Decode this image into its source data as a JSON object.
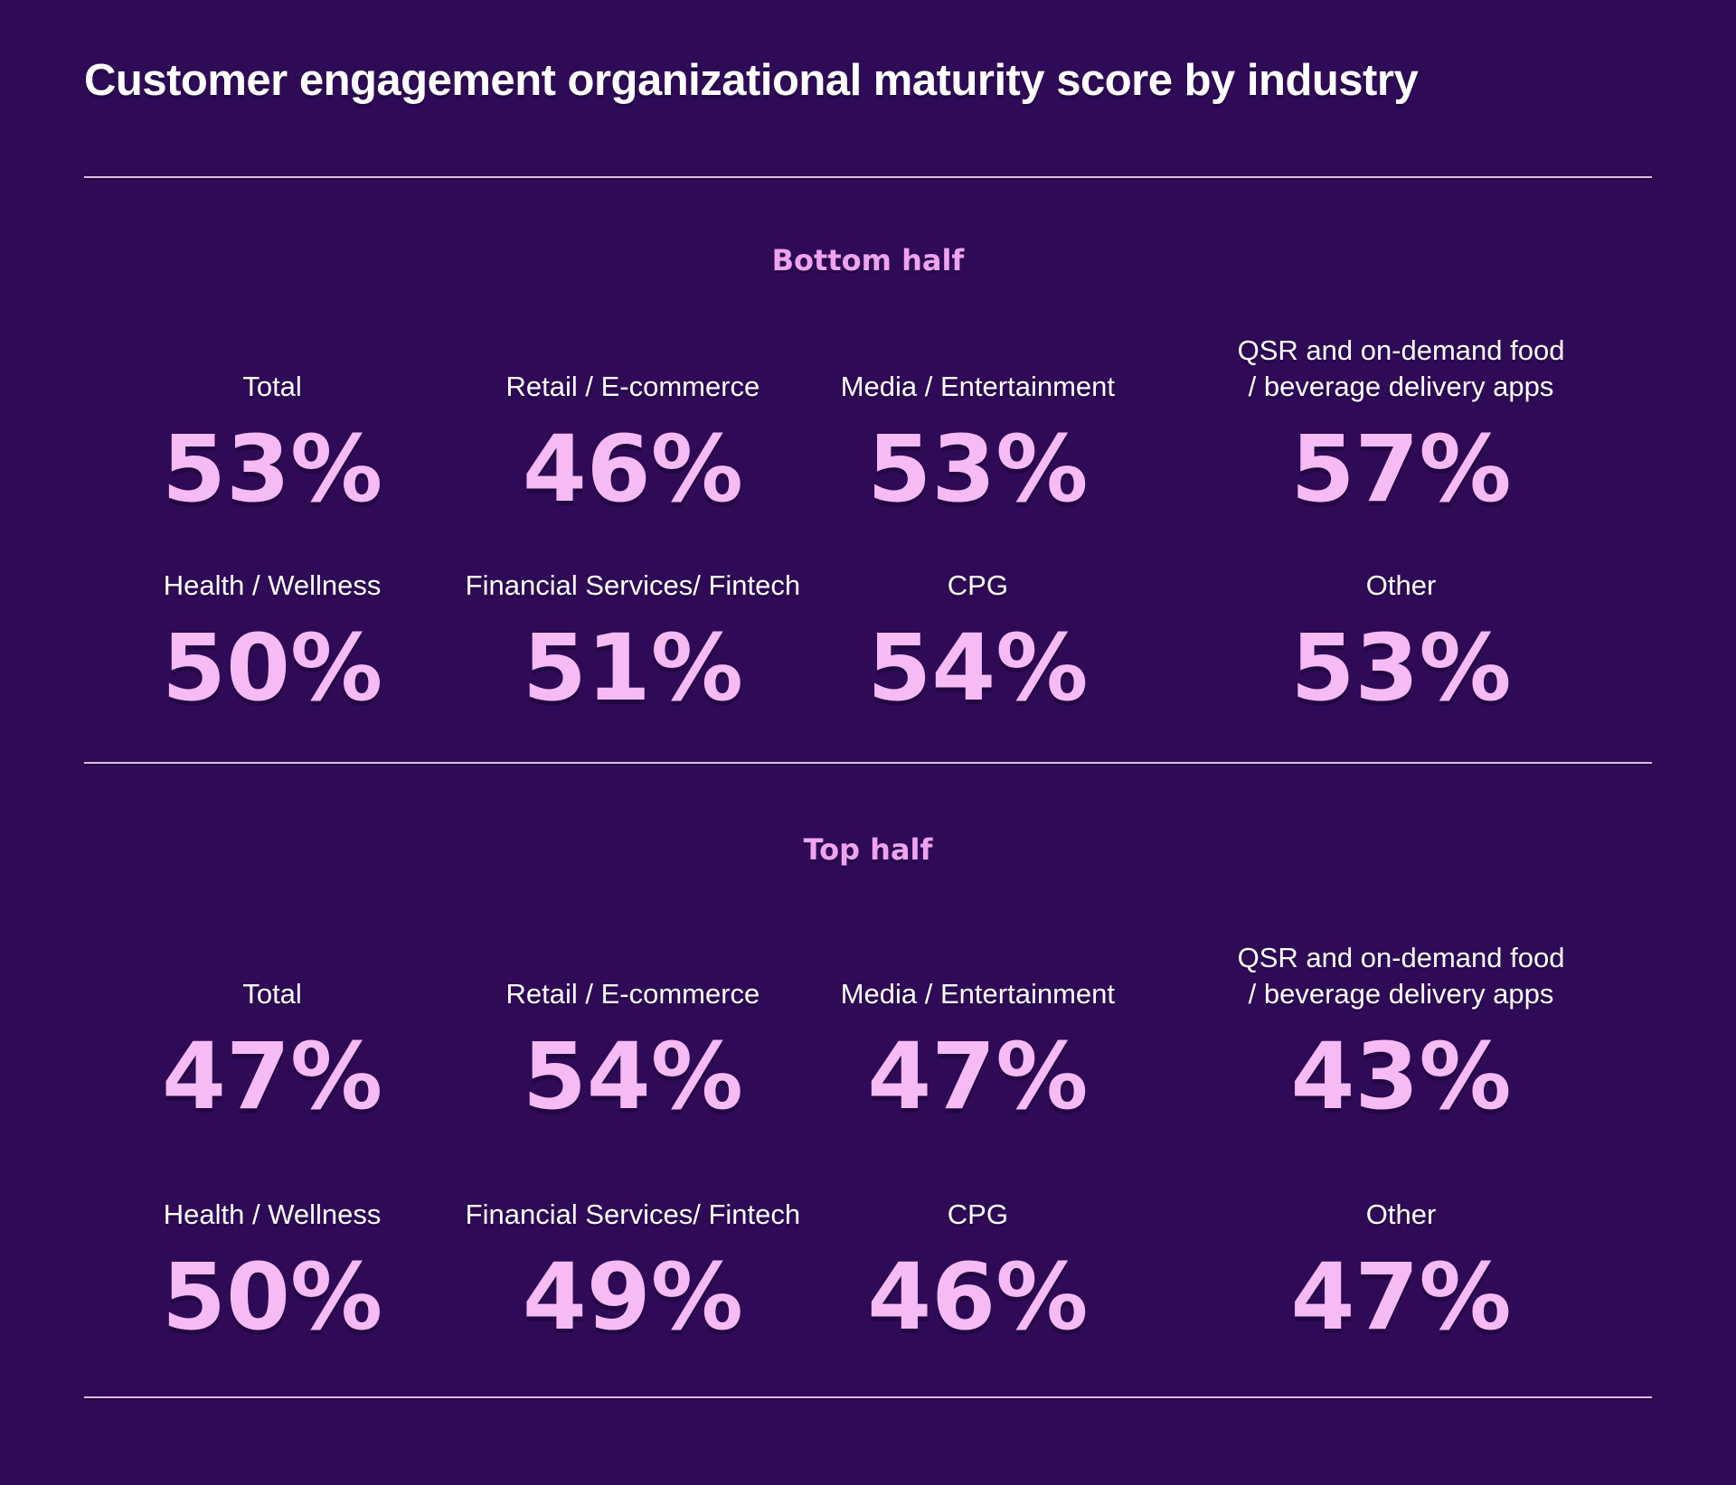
{
  "title": "Customer engagement organizational maturity score by industry",
  "colors": {
    "background": "#2e0a57",
    "title_text": "#ffffff",
    "label_text": "#ffffff",
    "section_heading": "#efa3ee",
    "value_text": "#f6bbf4",
    "divider": "#e0bbe7"
  },
  "sections": [
    {
      "heading": "Bottom half",
      "stats": [
        {
          "label": "Total",
          "value": "53%"
        },
        {
          "label": "Retail / E-commerce",
          "value": "46%"
        },
        {
          "label": "Media / Entertainment",
          "value": "53%"
        },
        {
          "label": "QSR and on-demand food\n/ beverage delivery apps",
          "value": "57%"
        },
        {
          "label": "Health / Wellness",
          "value": "50%"
        },
        {
          "label": "Financial Services/ Fintech",
          "value": "51%"
        },
        {
          "label": "CPG",
          "value": "54%"
        },
        {
          "label": "Other",
          "value": "53%"
        }
      ]
    },
    {
      "heading": "Top half",
      "stats": [
        {
          "label": "Total",
          "value": "47%"
        },
        {
          "label": "Retail / E-commerce",
          "value": "54%"
        },
        {
          "label": "Media / Entertainment",
          "value": "47%"
        },
        {
          "label": "QSR and on-demand food\n/ beverage delivery apps",
          "value": "43%"
        },
        {
          "label": "Health / Wellness",
          "value": "50%"
        },
        {
          "label": "Financial Services/ Fintech",
          "value": "49%"
        },
        {
          "label": "CPG",
          "value": "46%"
        },
        {
          "label": "Other",
          "value": "47%"
        }
      ]
    }
  ],
  "chart_data": {
    "type": "table",
    "title": "Customer engagement organizational maturity score by industry",
    "unit": "%",
    "categories": [
      "Total",
      "Retail / E-commerce",
      "Media / Entertainment",
      "QSR and on-demand food / beverage delivery apps",
      "Health / Wellness",
      "Financial Services/ Fintech",
      "CPG",
      "Other"
    ],
    "series": [
      {
        "name": "Bottom half",
        "values": [
          53,
          46,
          53,
          57,
          50,
          51,
          54,
          53
        ]
      },
      {
        "name": "Top half",
        "values": [
          47,
          54,
          47,
          43,
          50,
          49,
          46,
          47
        ]
      }
    ],
    "layout": "two groups of eight stat callouts, 4 columns x 2 rows each"
  }
}
